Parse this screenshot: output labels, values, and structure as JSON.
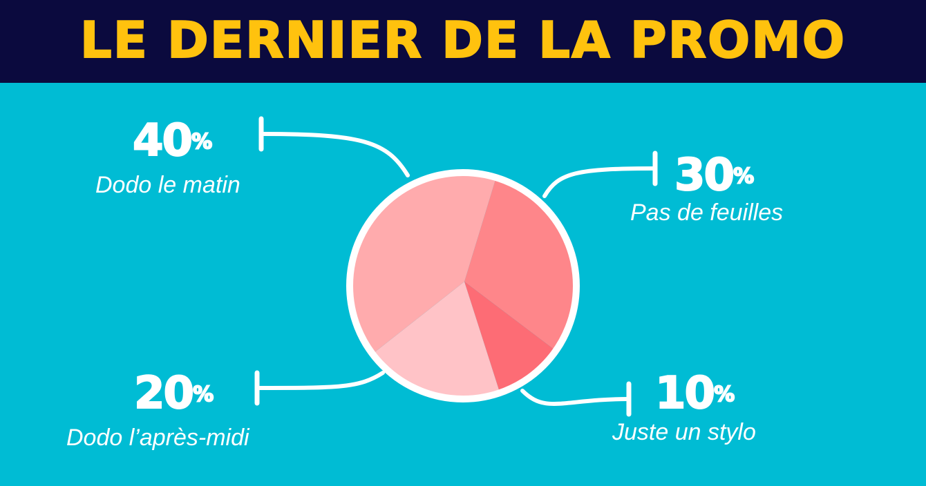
{
  "header": {
    "title": "LE DERNIER DE LA PROMO"
  },
  "colors": {
    "background": "#00bcd4",
    "header_bg": "#0b0a3e",
    "title": "#ffc20e",
    "outline": "#ffffff"
  },
  "chart_data": {
    "type": "pie",
    "title": "LE DERNIER DE LA PROMO",
    "slices": [
      {
        "label": "Pas de feuilles",
        "value": 30,
        "value_label": "30",
        "color": "#fe868a"
      },
      {
        "label": "Juste un stylo",
        "value": 10,
        "value_label": "10",
        "color": "#fd6c75"
      },
      {
        "label": "Dodo l’après-midi",
        "value": 20,
        "value_label": "20",
        "color": "#ffc3c7"
      },
      {
        "label": "Dodo le matin",
        "value": 40,
        "value_label": "40",
        "color": "#ffabad"
      }
    ]
  }
}
